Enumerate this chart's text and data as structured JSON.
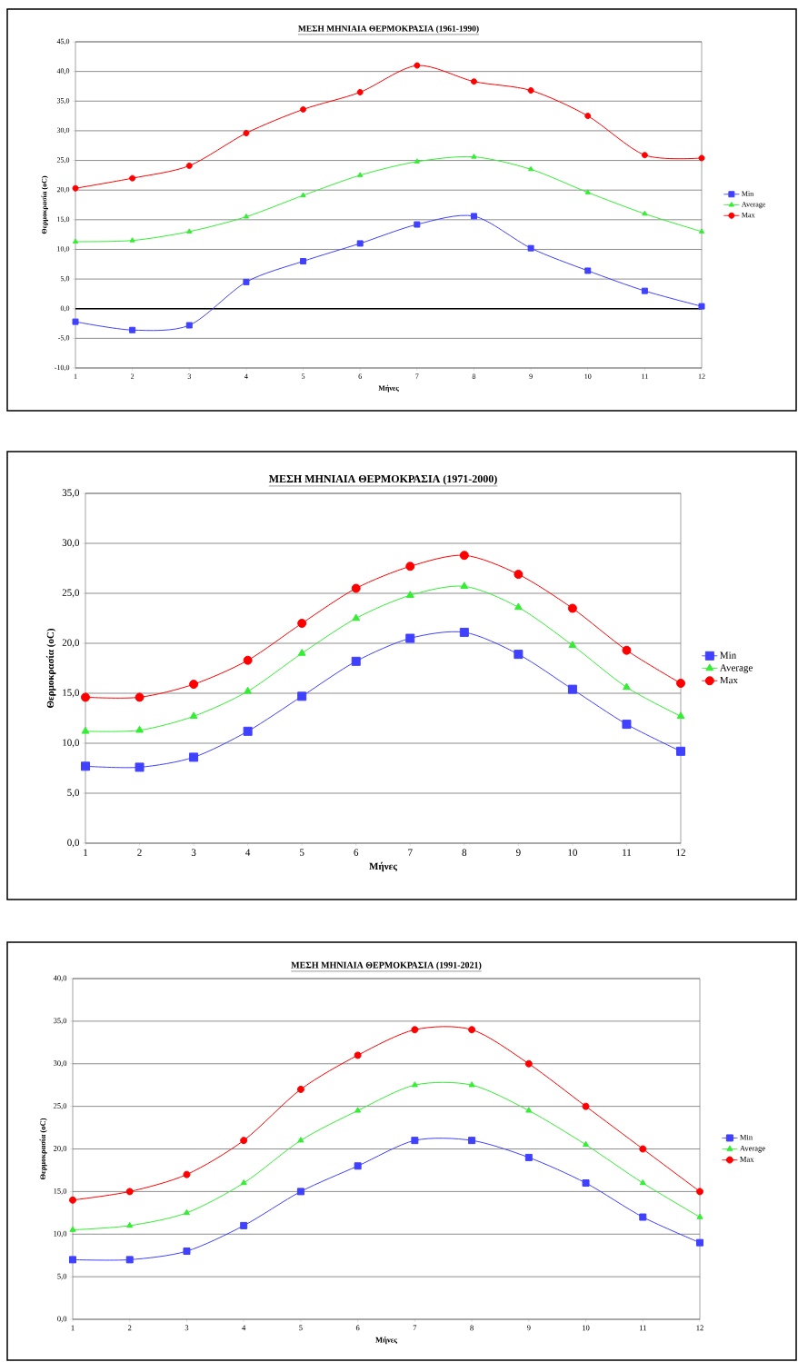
{
  "chart_data": [
    {
      "type": "line",
      "title": "ΜΕΣΗ ΜΗΝΙΑΙΑ ΘΕΡΜΟΚΡΑΣΙΑ (1961-1990)",
      "xlabel": "Μήνες",
      "ylabel": "Θερμοκρασία (oC)",
      "categories": [
        "1",
        "2",
        "3",
        "4",
        "5",
        "6",
        "7",
        "8",
        "9",
        "10",
        "11",
        "12"
      ],
      "series": [
        {
          "name": "Min",
          "color": "#4040ff",
          "marker": "square",
          "values": [
            -2.2,
            -3.6,
            -2.8,
            4.5,
            8.0,
            11.0,
            14.2,
            15.6,
            10.2,
            6.4,
            3.0,
            0.4
          ]
        },
        {
          "name": "Average",
          "color": "#33ee33",
          "marker": "triangle",
          "values": [
            11.3,
            11.5,
            13.0,
            15.5,
            19.1,
            22.5,
            24.8,
            25.6,
            23.5,
            19.6,
            16.0,
            13.0
          ]
        },
        {
          "name": "Max",
          "color": "#ff0000",
          "marker": "circle",
          "values": [
            20.3,
            22.0,
            24.1,
            29.6,
            33.6,
            36.5,
            41.0,
            38.3,
            36.8,
            32.5,
            25.9,
            25.4
          ]
        }
      ],
      "ylim": [
        -10,
        45
      ],
      "yticks": [
        {
          "value": -10,
          "label": "-10,0"
        },
        {
          "value": -5,
          "label": "-5,0"
        },
        {
          "value": 0,
          "label": "0,0"
        },
        {
          "value": 5,
          "label": "5,0"
        },
        {
          "value": 10,
          "label": "10,0"
        },
        {
          "value": 15,
          "label": "15,0"
        },
        {
          "value": 20,
          "label": "20,0"
        },
        {
          "value": 25,
          "label": "25,0"
        },
        {
          "value": 30,
          "label": "30,0"
        },
        {
          "value": 35,
          "label": "35,0"
        },
        {
          "value": 40,
          "label": "40,0"
        },
        {
          "value": 45,
          "label": "45,0"
        }
      ],
      "ref_lines": [
        {
          "axis": "y",
          "value": 0,
          "color": "#000000"
        }
      ],
      "grid": "y",
      "legend": "right"
    },
    {
      "type": "line",
      "title": "ΜΕΣΗ ΜΗΝΙΑΙΑ ΘΕΡΜΟΚΡΑΣΙΑ (1971-2000)",
      "xlabel": "Μήνες",
      "ylabel": "Θερμοκρασία (oC)",
      "categories": [
        "1",
        "2",
        "3",
        "4",
        "5",
        "6",
        "7",
        "8",
        "9",
        "10",
        "11",
        "12"
      ],
      "series": [
        {
          "name": "Min",
          "color": "#4040ff",
          "marker": "square",
          "values": [
            7.7,
            7.6,
            8.6,
            11.2,
            14.7,
            18.2,
            20.5,
            21.1,
            18.9,
            15.4,
            11.9,
            9.2
          ]
        },
        {
          "name": "Average",
          "color": "#33ee33",
          "marker": "triangle",
          "values": [
            11.2,
            11.3,
            12.7,
            15.2,
            19.0,
            22.5,
            24.8,
            25.7,
            23.6,
            19.8,
            15.6,
            12.7
          ]
        },
        {
          "name": "Max",
          "color": "#ff0000",
          "marker": "circle",
          "values": [
            14.6,
            14.6,
            15.9,
            18.3,
            22.0,
            25.5,
            27.7,
            28.8,
            26.9,
            23.5,
            19.3,
            16.0
          ]
        }
      ],
      "ylim": [
        0,
        35
      ],
      "yticks": [
        {
          "value": 0,
          "label": "0,0"
        },
        {
          "value": 5,
          "label": "5,0"
        },
        {
          "value": 10,
          "label": "10,0"
        },
        {
          "value": 15,
          "label": "15,0"
        },
        {
          "value": 20,
          "label": "20,0"
        },
        {
          "value": 25,
          "label": "25,0"
        },
        {
          "value": 30,
          "label": "30,0"
        },
        {
          "value": 35,
          "label": "35,0"
        }
      ],
      "grid": "y",
      "legend": "right"
    },
    {
      "type": "line",
      "title": "ΜΕΣΗ ΜΗΝΙΑΙΑ ΘΕΡΜΟΚΡΑΣΙΑ (1991-2021)",
      "xlabel": "Μήνες",
      "ylabel": "Θερμοκρασία (oC)",
      "categories": [
        "1",
        "2",
        "3",
        "4",
        "5",
        "6",
        "7",
        "8",
        "9",
        "10",
        "11",
        "12"
      ],
      "series": [
        {
          "name": "Min",
          "color": "#4040ff",
          "marker": "square",
          "values": [
            7,
            7,
            8,
            11,
            15,
            18,
            21,
            21,
            19,
            16,
            12,
            9
          ]
        },
        {
          "name": "Average",
          "color": "#33ee33",
          "marker": "triangle",
          "values": [
            10.5,
            11,
            12.5,
            16,
            21,
            24.5,
            27.5,
            27.5,
            24.5,
            20.5,
            16,
            12
          ]
        },
        {
          "name": "Max",
          "color": "#ff0000",
          "marker": "circle",
          "values": [
            14,
            15,
            17,
            21,
            27,
            31,
            34,
            34,
            30,
            25,
            20,
            15
          ]
        }
      ],
      "ylim": [
        0,
        40
      ],
      "yticks": [
        {
          "value": 0,
          "label": "0,0"
        },
        {
          "value": 5,
          "label": "5,0"
        },
        {
          "value": 10,
          "label": "10,0"
        },
        {
          "value": 15,
          "label": "15,0"
        },
        {
          "value": 20,
          "label": "20,0"
        },
        {
          "value": 25,
          "label": "25,0"
        },
        {
          "value": 30,
          "label": "30,0"
        },
        {
          "value": 35,
          "label": "35,0"
        },
        {
          "value": 40,
          "label": "40,0"
        }
      ],
      "grid": "y",
      "legend": "right"
    }
  ]
}
